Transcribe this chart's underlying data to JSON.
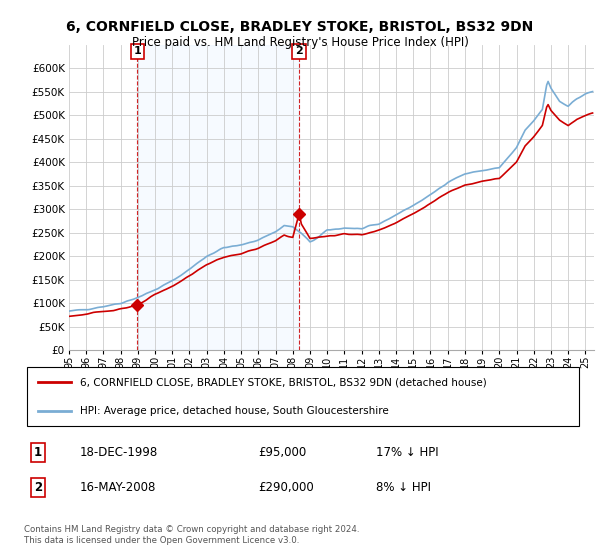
{
  "title": "6, CORNFIELD CLOSE, BRADLEY STOKE, BRISTOL, BS32 9DN",
  "subtitle": "Price paid vs. HM Land Registry's House Price Index (HPI)",
  "title_fontsize": 10,
  "subtitle_fontsize": 8.5,
  "legend_label_red": "6, CORNFIELD CLOSE, BRADLEY STOKE, BRISTOL, BS32 9DN (detached house)",
  "legend_label_blue": "HPI: Average price, detached house, South Gloucestershire",
  "annotation1_label": "1",
  "annotation1_date": "18-DEC-1998",
  "annotation1_price": "£95,000",
  "annotation1_hpi": "17% ↓ HPI",
  "annotation2_label": "2",
  "annotation2_date": "16-MAY-2008",
  "annotation2_price": "£290,000",
  "annotation2_hpi": "8% ↓ HPI",
  "footer": "Contains HM Land Registry data © Crown copyright and database right 2024.\nThis data is licensed under the Open Government Licence v3.0.",
  "red_color": "#cc0000",
  "blue_color": "#7aadd4",
  "shade_color": "#ddeeff",
  "background_color": "#ffffff",
  "ylim": [
    0,
    650000
  ],
  "yticks": [
    0,
    50000,
    100000,
    150000,
    200000,
    250000,
    300000,
    350000,
    400000,
    450000,
    500000,
    550000,
    600000
  ],
  "sale1_x": 1998.96,
  "sale1_y": 95000,
  "sale2_x": 2008.37,
  "sale2_y": 290000,
  "xlim_left": 1995.0,
  "xlim_right": 2025.5,
  "xtick_labels": [
    "95",
    "96",
    "97",
    "98",
    "99",
    "00",
    "01",
    "02",
    "03",
    "04",
    "05",
    "06",
    "07",
    "08",
    "09",
    "10",
    "11",
    "12",
    "13",
    "14",
    "15",
    "16",
    "17",
    "18",
    "19",
    "20",
    "21",
    "22",
    "23",
    "24",
    "25"
  ],
  "xtick_positions": [
    1995,
    1996,
    1997,
    1998,
    1999,
    2000,
    2001,
    2002,
    2003,
    2004,
    2005,
    2006,
    2007,
    2008,
    2009,
    2010,
    2011,
    2012,
    2013,
    2014,
    2015,
    2016,
    2017,
    2018,
    2019,
    2020,
    2021,
    2022,
    2023,
    2024,
    2025
  ]
}
